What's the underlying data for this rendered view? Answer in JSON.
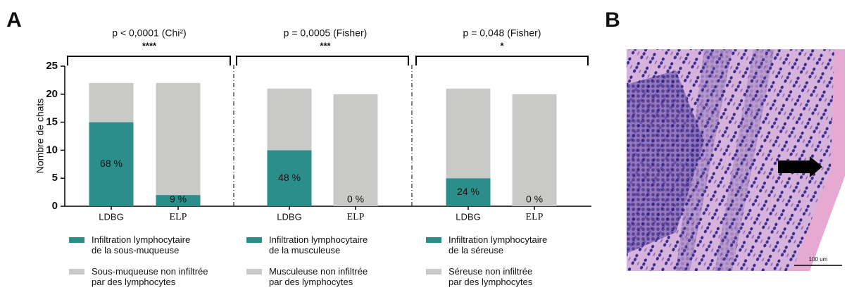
{
  "panel_a_label": "A",
  "panel_b": {
    "label": "B",
    "scale_bar": "100 um"
  },
  "chart_data": [
    {
      "type": "bar",
      "stacked": true,
      "title": "p < 0,0001 (Chi²)",
      "subtitle": "****",
      "ylabel": "Nombre de chats",
      "ylim": [
        0,
        25
      ],
      "yticks": [
        0,
        5,
        10,
        15,
        20,
        25
      ],
      "categories": [
        "LDBG",
        "ELP"
      ],
      "series": [
        {
          "name": "Infiltration lymphocytaire\nde la sous-muqueuse",
          "color": "#2b8e8b",
          "values": [
            15,
            2
          ]
        },
        {
          "name": "Sous-muqueuse non infiltrée\npar des lymphocytes",
          "color": "#c9c9c7",
          "values": [
            7,
            20
          ]
        }
      ],
      "percent_labels": [
        "68 %",
        "9 %"
      ]
    },
    {
      "type": "bar",
      "stacked": true,
      "title": "p = 0,0005 (Fisher)",
      "subtitle": "***",
      "ylim": [
        0,
        25
      ],
      "categories": [
        "LDBG",
        "ELP"
      ],
      "series": [
        {
          "name": "Infiltration lymphocytaire\nde la musculeuse",
          "color": "#2b8e8b",
          "values": [
            10,
            0
          ]
        },
        {
          "name": "Musculeuse non infiltrée\npar des lymphocytes",
          "color": "#c9c9c7",
          "values": [
            11,
            20
          ]
        }
      ],
      "percent_labels": [
        "48 %",
        "0 %"
      ]
    },
    {
      "type": "bar",
      "stacked": true,
      "title": "p = 0,048 (Fisher)",
      "subtitle": "*",
      "ylim": [
        0,
        25
      ],
      "categories": [
        "LDBG",
        "ELP"
      ],
      "series": [
        {
          "name": "Infiltration lymphocytaire\nde la séreuse",
          "color": "#2b8e8b",
          "values": [
            5,
            0
          ]
        },
        {
          "name": "Séreuse non infiltrée\npar des lymphocytes",
          "color": "#c9c9c7",
          "values": [
            16,
            20
          ]
        }
      ],
      "percent_labels": [
        "24 %",
        "0 %"
      ]
    }
  ]
}
